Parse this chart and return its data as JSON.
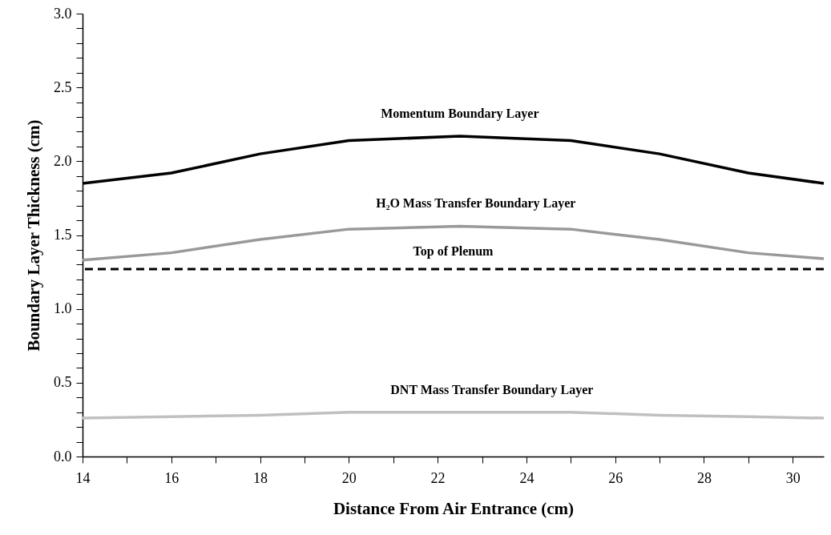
{
  "chart_data": {
    "type": "line",
    "xlabel": "Distance From Air Entrance (cm)",
    "ylabel": "Boundary Layer Thickness (cm)",
    "x": [
      14,
      16,
      18,
      20,
      22.5,
      25,
      27,
      29,
      30.7
    ],
    "series": [
      {
        "name": "Momentum Boundary Layer",
        "color": "#000000",
        "values": [
          1.85,
          1.92,
          2.05,
          2.14,
          2.17,
          2.14,
          2.05,
          1.92,
          1.85
        ]
      },
      {
        "name": "H₂O Mass Transfer Boundary Layer",
        "color": "#999999",
        "values": [
          1.33,
          1.38,
          1.47,
          1.54,
          1.56,
          1.54,
          1.47,
          1.38,
          1.34
        ]
      },
      {
        "name": "DNT Mass Transfer Boundary Layer",
        "color": "#c0c0c0",
        "values": [
          0.26,
          0.27,
          0.28,
          0.3,
          0.3,
          0.3,
          0.28,
          0.27,
          0.26
        ]
      }
    ],
    "ref_lines": [
      {
        "axis": "y",
        "value": 1.27,
        "label": "Top of Plenum",
        "color": "#000000",
        "line_style": "dashed"
      }
    ],
    "xlim": [
      14,
      30.7
    ],
    "ylim": [
      0,
      3
    ],
    "xticks": [
      14,
      {
        "value": 15,
        "label": null
      },
      16,
      {
        "value": 17,
        "label": null
      },
      18,
      {
        "value": 19,
        "label": null
      },
      20,
      {
        "value": 21,
        "label": null
      },
      22,
      {
        "value": 23,
        "label": null
      },
      24,
      {
        "value": 25,
        "label": null
      },
      26,
      {
        "value": 27,
        "label": null
      },
      28,
      {
        "value": 29,
        "label": null
      },
      30
    ],
    "yticks": [
      {
        "value": 0,
        "label": "0.0"
      },
      {
        "value": 0.1,
        "label": null
      },
      {
        "value": 0.2,
        "label": null
      },
      {
        "value": 0.3,
        "label": null
      },
      {
        "value": 0.4,
        "label": null
      },
      0.5,
      {
        "value": 0.6,
        "label": null
      },
      {
        "value": 0.7,
        "label": null
      },
      {
        "value": 0.8,
        "label": null
      },
      {
        "value": 0.9,
        "label": null
      },
      {
        "value": 1,
        "label": "1.0"
      },
      {
        "value": 1.1,
        "label": null
      },
      {
        "value": 1.2,
        "label": null
      },
      {
        "value": 1.3,
        "label": null
      },
      {
        "value": 1.4,
        "label": null
      },
      1.5,
      {
        "value": 1.6,
        "label": null
      },
      {
        "value": 1.7,
        "label": null
      },
      {
        "value": 1.8,
        "label": null
      },
      {
        "value": 1.9,
        "label": null
      },
      {
        "value": 2,
        "label": "2.0"
      },
      {
        "value": 2.1,
        "label": null
      },
      {
        "value": 2.2,
        "label": null
      },
      {
        "value": 2.3,
        "label": null
      },
      {
        "value": 2.4,
        "label": null
      },
      2.5,
      {
        "value": 2.6,
        "label": null
      },
      {
        "value": 2.7,
        "label": null
      },
      {
        "value": 2.8,
        "label": null
      },
      {
        "value": 2.9,
        "label": null
      },
      {
        "value": 3,
        "label": "3.0"
      }
    ],
    "grid": false,
    "legend": false,
    "marker": "none",
    "line_style": "solid"
  }
}
